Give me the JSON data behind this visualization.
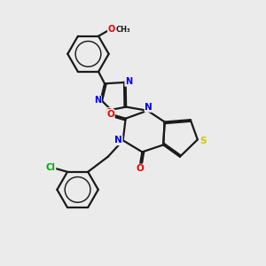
{
  "background_color": "#ebebeb",
  "bond_color": "#1a1a1a",
  "atom_colors": {
    "N": "#0000ee",
    "O": "#ee0000",
    "S": "#cccc00",
    "Cl": "#00aa00",
    "C": "#1a1a1a"
  },
  "lw": 1.6
}
